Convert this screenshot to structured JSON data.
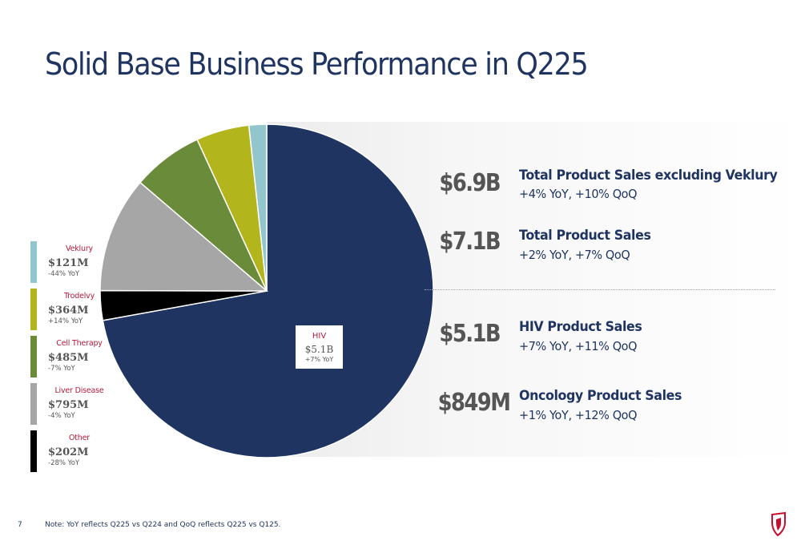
{
  "slide": {
    "title": "Solid Base Business Performance in Q225",
    "page_number": "7",
    "footnote": "Note: YoY reflects Q225 vs Q224 and QoQ reflects Q225 vs Q125."
  },
  "chart_data": {
    "type": "pie",
    "unit": "$M",
    "slices": [
      {
        "name": "HIV",
        "value": 5100,
        "value_label": "$5.1B",
        "yoy": "+7% YoY",
        "color": "#1f3461"
      },
      {
        "name": "Other",
        "value": 202,
        "value_label": "$202M",
        "yoy": "-28% YoY",
        "color": "#000000"
      },
      {
        "name": "Liver Disease",
        "value": 795,
        "value_label": "$795M",
        "yoy": "-4% YoY",
        "color": "#a6a6a6"
      },
      {
        "name": "Cell Therapy",
        "value": 485,
        "value_label": "$485M",
        "yoy": "-7% YoY",
        "color": "#6a8c3a"
      },
      {
        "name": "Trodelvy",
        "value": 364,
        "value_label": "$364M",
        "yoy": "+14% YoY",
        "color": "#b2b51b"
      },
      {
        "name": "Veklury",
        "value": 121,
        "value_label": "$121M",
        "yoy": "-44% YoY",
        "color": "#92c5cc"
      }
    ],
    "legend_order": [
      "Veklury",
      "Trodelvy",
      "Cell Therapy",
      "Liver Disease",
      "Other"
    ],
    "legend_placement": "left"
  },
  "metrics": [
    {
      "value": "$6.9B",
      "label": "Total Product Sales excluding Veklury",
      "change": "+4% YoY, +10% QoQ"
    },
    {
      "value": "$7.1B",
      "label": "Total Product Sales",
      "change": "+2% YoY, +7% QoQ"
    },
    {
      "value": "$5.1B",
      "label": "HIV Product Sales",
      "change": "+7% YoY, +11% QoQ"
    },
    {
      "value": "$849M",
      "label": "Oncology Product Sales",
      "change": "+1% YoY, +12% QoQ"
    }
  ],
  "logo": {
    "icon": "company-logo-icon",
    "color": "#c8102e"
  }
}
